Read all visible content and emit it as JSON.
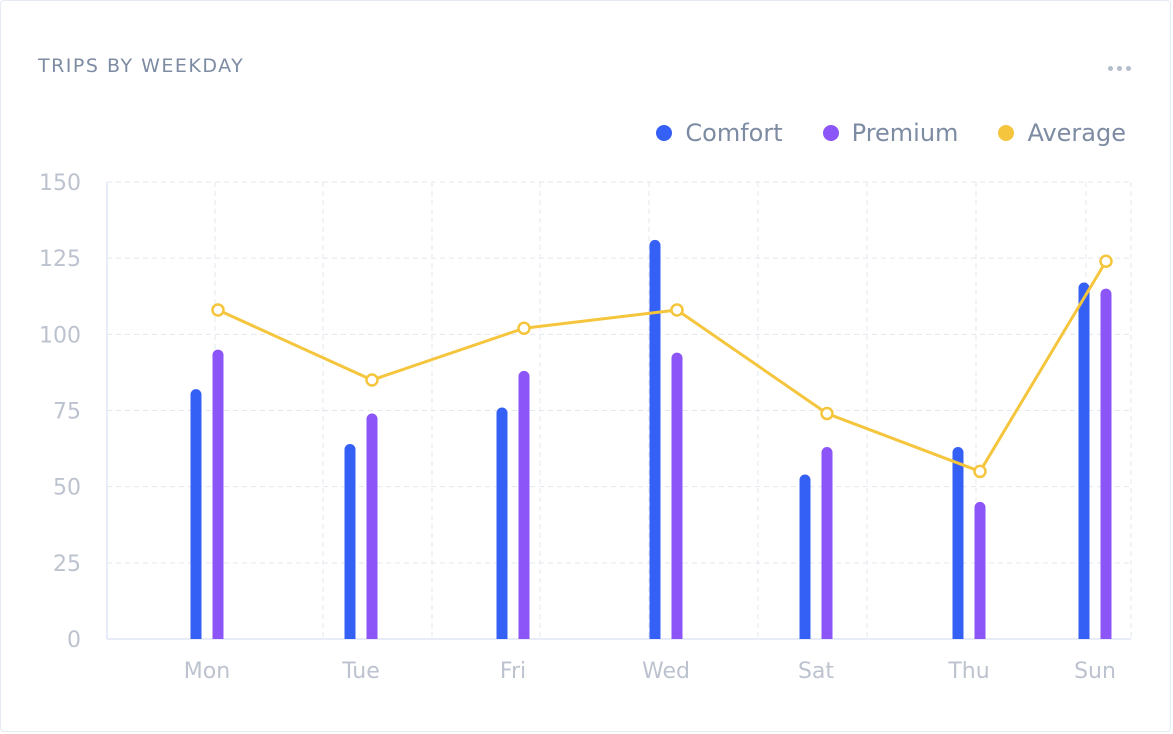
{
  "card": {
    "title": "TRIPS BY WEEKDAY",
    "menu_icon": "more-horizontal-icon"
  },
  "colors": {
    "comfort": "#3460f5",
    "premium": "#8b55f7",
    "average": "#f5c53d",
    "grid": "#e3e8ef",
    "axis": "#dfe6f5"
  },
  "chart_data": {
    "type": "bar",
    "title": "TRIPS BY WEEKDAY",
    "categories": [
      "Mon",
      "Tue",
      "Fri",
      "Wed",
      "Sat",
      "Thu",
      "Sun"
    ],
    "series": [
      {
        "name": "Comfort",
        "type": "bar",
        "values": [
          82,
          64,
          76,
          131,
          54,
          63,
          117
        ]
      },
      {
        "name": "Premium",
        "type": "bar",
        "values": [
          95,
          74,
          88,
          94,
          63,
          45,
          115
        ]
      },
      {
        "name": "Average",
        "type": "line",
        "values": [
          108,
          85,
          102,
          108,
          74,
          55,
          124
        ]
      }
    ],
    "ylim": [
      0,
      150
    ],
    "yticks": [
      0,
      25,
      50,
      75,
      100,
      125,
      150
    ],
    "xlabel": "",
    "ylabel": "",
    "grid": true,
    "legend": "top-right"
  }
}
